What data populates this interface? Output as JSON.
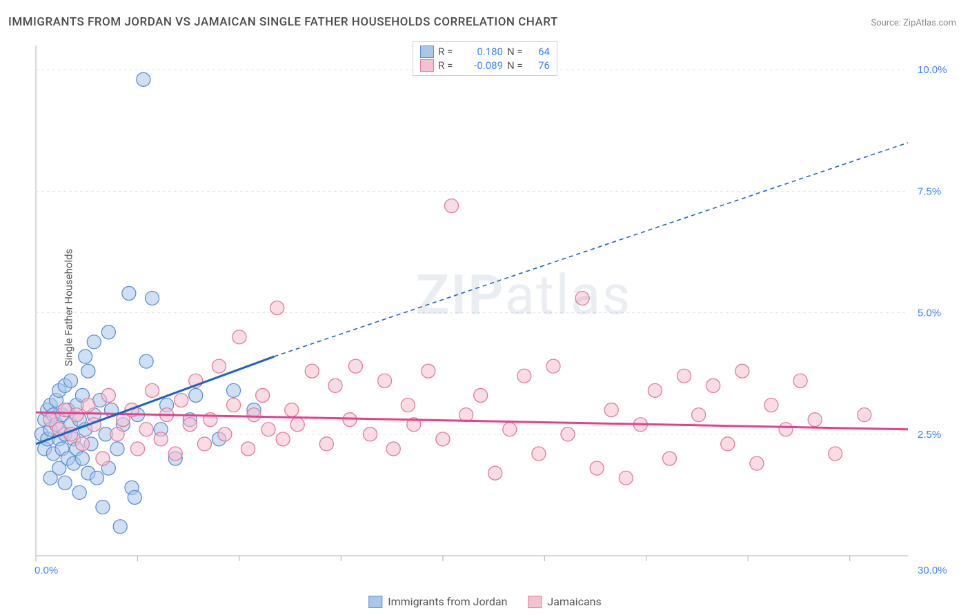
{
  "title": "IMMIGRANTS FROM JORDAN VS JAMAICAN SINGLE FATHER HOUSEHOLDS CORRELATION CHART",
  "source_label": "Source: ",
  "source_name": "ZipAtlas.com",
  "watermark_a": "ZIP",
  "watermark_b": "atlas",
  "y_axis_label": "Single Father Households",
  "chart": {
    "type": "scatter",
    "background_color": "#ffffff",
    "plot_bg": "#ffffff",
    "grid_color": "#e0e0e0",
    "axis_color": "#cccccc",
    "tick_color": "#bbbbbb",
    "xlim": [
      0,
      30
    ],
    "ylim": [
      0,
      10.5
    ],
    "x_ticks": [
      0,
      3.5,
      7,
      10.5,
      14,
      17.5,
      21,
      24.5,
      28
    ],
    "x_tick_labels": {
      "0": "0.0%",
      "30": "30.0%"
    },
    "y_ticks": [
      2.5,
      5.0,
      7.5,
      10.0
    ],
    "y_tick_labels": {
      "2.5": "2.5%",
      "5.0": "5.0%",
      "7.5": "7.5%",
      "10.0": "10.0%"
    },
    "tick_label_color": "#3b82f6",
    "tick_label_fontsize": 15,
    "marker_radius": 10,
    "marker_opacity": 0.55,
    "marker_stroke_width": 1.3,
    "series": [
      {
        "name": "Immigrants from Jordan",
        "fill": "#a9c7eb",
        "stroke": "#5a8fd0",
        "R": "0.180",
        "N": "64",
        "trend": {
          "x1": 0,
          "y1": 2.3,
          "x2": 8.2,
          "y2": 4.1,
          "x3": 30,
          "y3": 8.5,
          "color": "#1e60c4",
          "solid_width": 3,
          "dash_width": 1.6,
          "dash": "6 5"
        },
        "points": [
          [
            0.2,
            2.5
          ],
          [
            0.3,
            2.8
          ],
          [
            0.3,
            2.2
          ],
          [
            0.4,
            3.0
          ],
          [
            0.4,
            2.4
          ],
          [
            0.5,
            2.6
          ],
          [
            0.5,
            1.6
          ],
          [
            0.5,
            3.1
          ],
          [
            0.6,
            2.9
          ],
          [
            0.6,
            2.1
          ],
          [
            0.7,
            2.7
          ],
          [
            0.7,
            3.2
          ],
          [
            0.8,
            2.4
          ],
          [
            0.8,
            1.8
          ],
          [
            0.8,
            3.4
          ],
          [
            0.9,
            2.9
          ],
          [
            0.9,
            2.2
          ],
          [
            1.0,
            3.5
          ],
          [
            1.0,
            2.5
          ],
          [
            1.0,
            1.5
          ],
          [
            1.1,
            3.0
          ],
          [
            1.1,
            2.0
          ],
          [
            1.2,
            2.7
          ],
          [
            1.2,
            3.6
          ],
          [
            1.3,
            1.9
          ],
          [
            1.3,
            2.4
          ],
          [
            1.4,
            3.1
          ],
          [
            1.4,
            2.2
          ],
          [
            1.5,
            2.8
          ],
          [
            1.5,
            1.3
          ],
          [
            1.6,
            3.3
          ],
          [
            1.6,
            2.0
          ],
          [
            1.7,
            4.1
          ],
          [
            1.7,
            2.6
          ],
          [
            1.8,
            3.8
          ],
          [
            1.8,
            1.7
          ],
          [
            1.9,
            2.3
          ],
          [
            2.0,
            4.4
          ],
          [
            2.0,
            2.9
          ],
          [
            2.1,
            1.6
          ],
          [
            2.2,
            3.2
          ],
          [
            2.3,
            1.0
          ],
          [
            2.4,
            2.5
          ],
          [
            2.5,
            4.6
          ],
          [
            2.5,
            1.8
          ],
          [
            2.6,
            3.0
          ],
          [
            2.8,
            2.2
          ],
          [
            2.9,
            0.6
          ],
          [
            3.0,
            2.7
          ],
          [
            3.2,
            5.4
          ],
          [
            3.3,
            1.4
          ],
          [
            3.4,
            1.2
          ],
          [
            3.5,
            2.9
          ],
          [
            3.7,
            9.8
          ],
          [
            3.8,
            4.0
          ],
          [
            4.0,
            5.3
          ],
          [
            4.3,
            2.6
          ],
          [
            4.5,
            3.1
          ],
          [
            4.8,
            2.0
          ],
          [
            5.3,
            2.8
          ],
          [
            5.5,
            3.3
          ],
          [
            6.3,
            2.4
          ],
          [
            6.8,
            3.4
          ],
          [
            7.5,
            3.0
          ]
        ]
      },
      {
        "name": "Jamaicans",
        "fill": "#f5c0cf",
        "stroke": "#e07a9a",
        "R": "-0.089",
        "N": "76",
        "trend": {
          "x1": 0,
          "y1": 2.95,
          "x2": 30,
          "y2": 2.6,
          "color": "#e83e8c",
          "solid_width": 3
        },
        "points": [
          [
            0.5,
            2.8
          ],
          [
            0.8,
            2.6
          ],
          [
            1.0,
            3.0
          ],
          [
            1.2,
            2.5
          ],
          [
            1.4,
            2.9
          ],
          [
            1.6,
            2.3
          ],
          [
            1.8,
            3.1
          ],
          [
            2.0,
            2.7
          ],
          [
            2.3,
            2.0
          ],
          [
            2.5,
            3.3
          ],
          [
            2.8,
            2.5
          ],
          [
            3.0,
            2.8
          ],
          [
            3.3,
            3.0
          ],
          [
            3.5,
            2.2
          ],
          [
            3.8,
            2.6
          ],
          [
            4.0,
            3.4
          ],
          [
            4.3,
            2.4
          ],
          [
            4.5,
            2.9
          ],
          [
            4.8,
            2.1
          ],
          [
            5.0,
            3.2
          ],
          [
            5.3,
            2.7
          ],
          [
            5.5,
            3.6
          ],
          [
            5.8,
            2.3
          ],
          [
            6.0,
            2.8
          ],
          [
            6.3,
            3.9
          ],
          [
            6.5,
            2.5
          ],
          [
            6.8,
            3.1
          ],
          [
            7.0,
            4.5
          ],
          [
            7.3,
            2.2
          ],
          [
            7.5,
            2.9
          ],
          [
            7.8,
            3.3
          ],
          [
            8.0,
            2.6
          ],
          [
            8.3,
            5.1
          ],
          [
            8.5,
            2.4
          ],
          [
            8.8,
            3.0
          ],
          [
            9.0,
            2.7
          ],
          [
            9.5,
            3.8
          ],
          [
            10.0,
            2.3
          ],
          [
            10.3,
            3.5
          ],
          [
            10.8,
            2.8
          ],
          [
            11.0,
            3.9
          ],
          [
            11.5,
            2.5
          ],
          [
            12.0,
            3.6
          ],
          [
            12.3,
            2.2
          ],
          [
            12.8,
            3.1
          ],
          [
            13.0,
            2.7
          ],
          [
            13.5,
            3.8
          ],
          [
            14.0,
            2.4
          ],
          [
            14.3,
            7.2
          ],
          [
            14.8,
            2.9
          ],
          [
            15.3,
            3.3
          ],
          [
            15.8,
            1.7
          ],
          [
            16.3,
            2.6
          ],
          [
            16.8,
            3.7
          ],
          [
            17.3,
            2.1
          ],
          [
            17.8,
            3.9
          ],
          [
            18.3,
            2.5
          ],
          [
            18.8,
            5.3
          ],
          [
            19.3,
            1.8
          ],
          [
            19.8,
            3.0
          ],
          [
            20.3,
            1.6
          ],
          [
            20.8,
            2.7
          ],
          [
            21.3,
            3.4
          ],
          [
            21.8,
            2.0
          ],
          [
            22.3,
            3.7
          ],
          [
            22.8,
            2.9
          ],
          [
            23.3,
            3.5
          ],
          [
            23.8,
            2.3
          ],
          [
            24.3,
            3.8
          ],
          [
            24.8,
            1.9
          ],
          [
            25.3,
            3.1
          ],
          [
            25.8,
            2.6
          ],
          [
            26.3,
            3.6
          ],
          [
            26.8,
            2.8
          ],
          [
            27.5,
            2.1
          ],
          [
            28.5,
            2.9
          ]
        ]
      }
    ]
  },
  "legend_top": {
    "r_label": "R =",
    "n_label": "N ="
  },
  "legend_bottom": {}
}
